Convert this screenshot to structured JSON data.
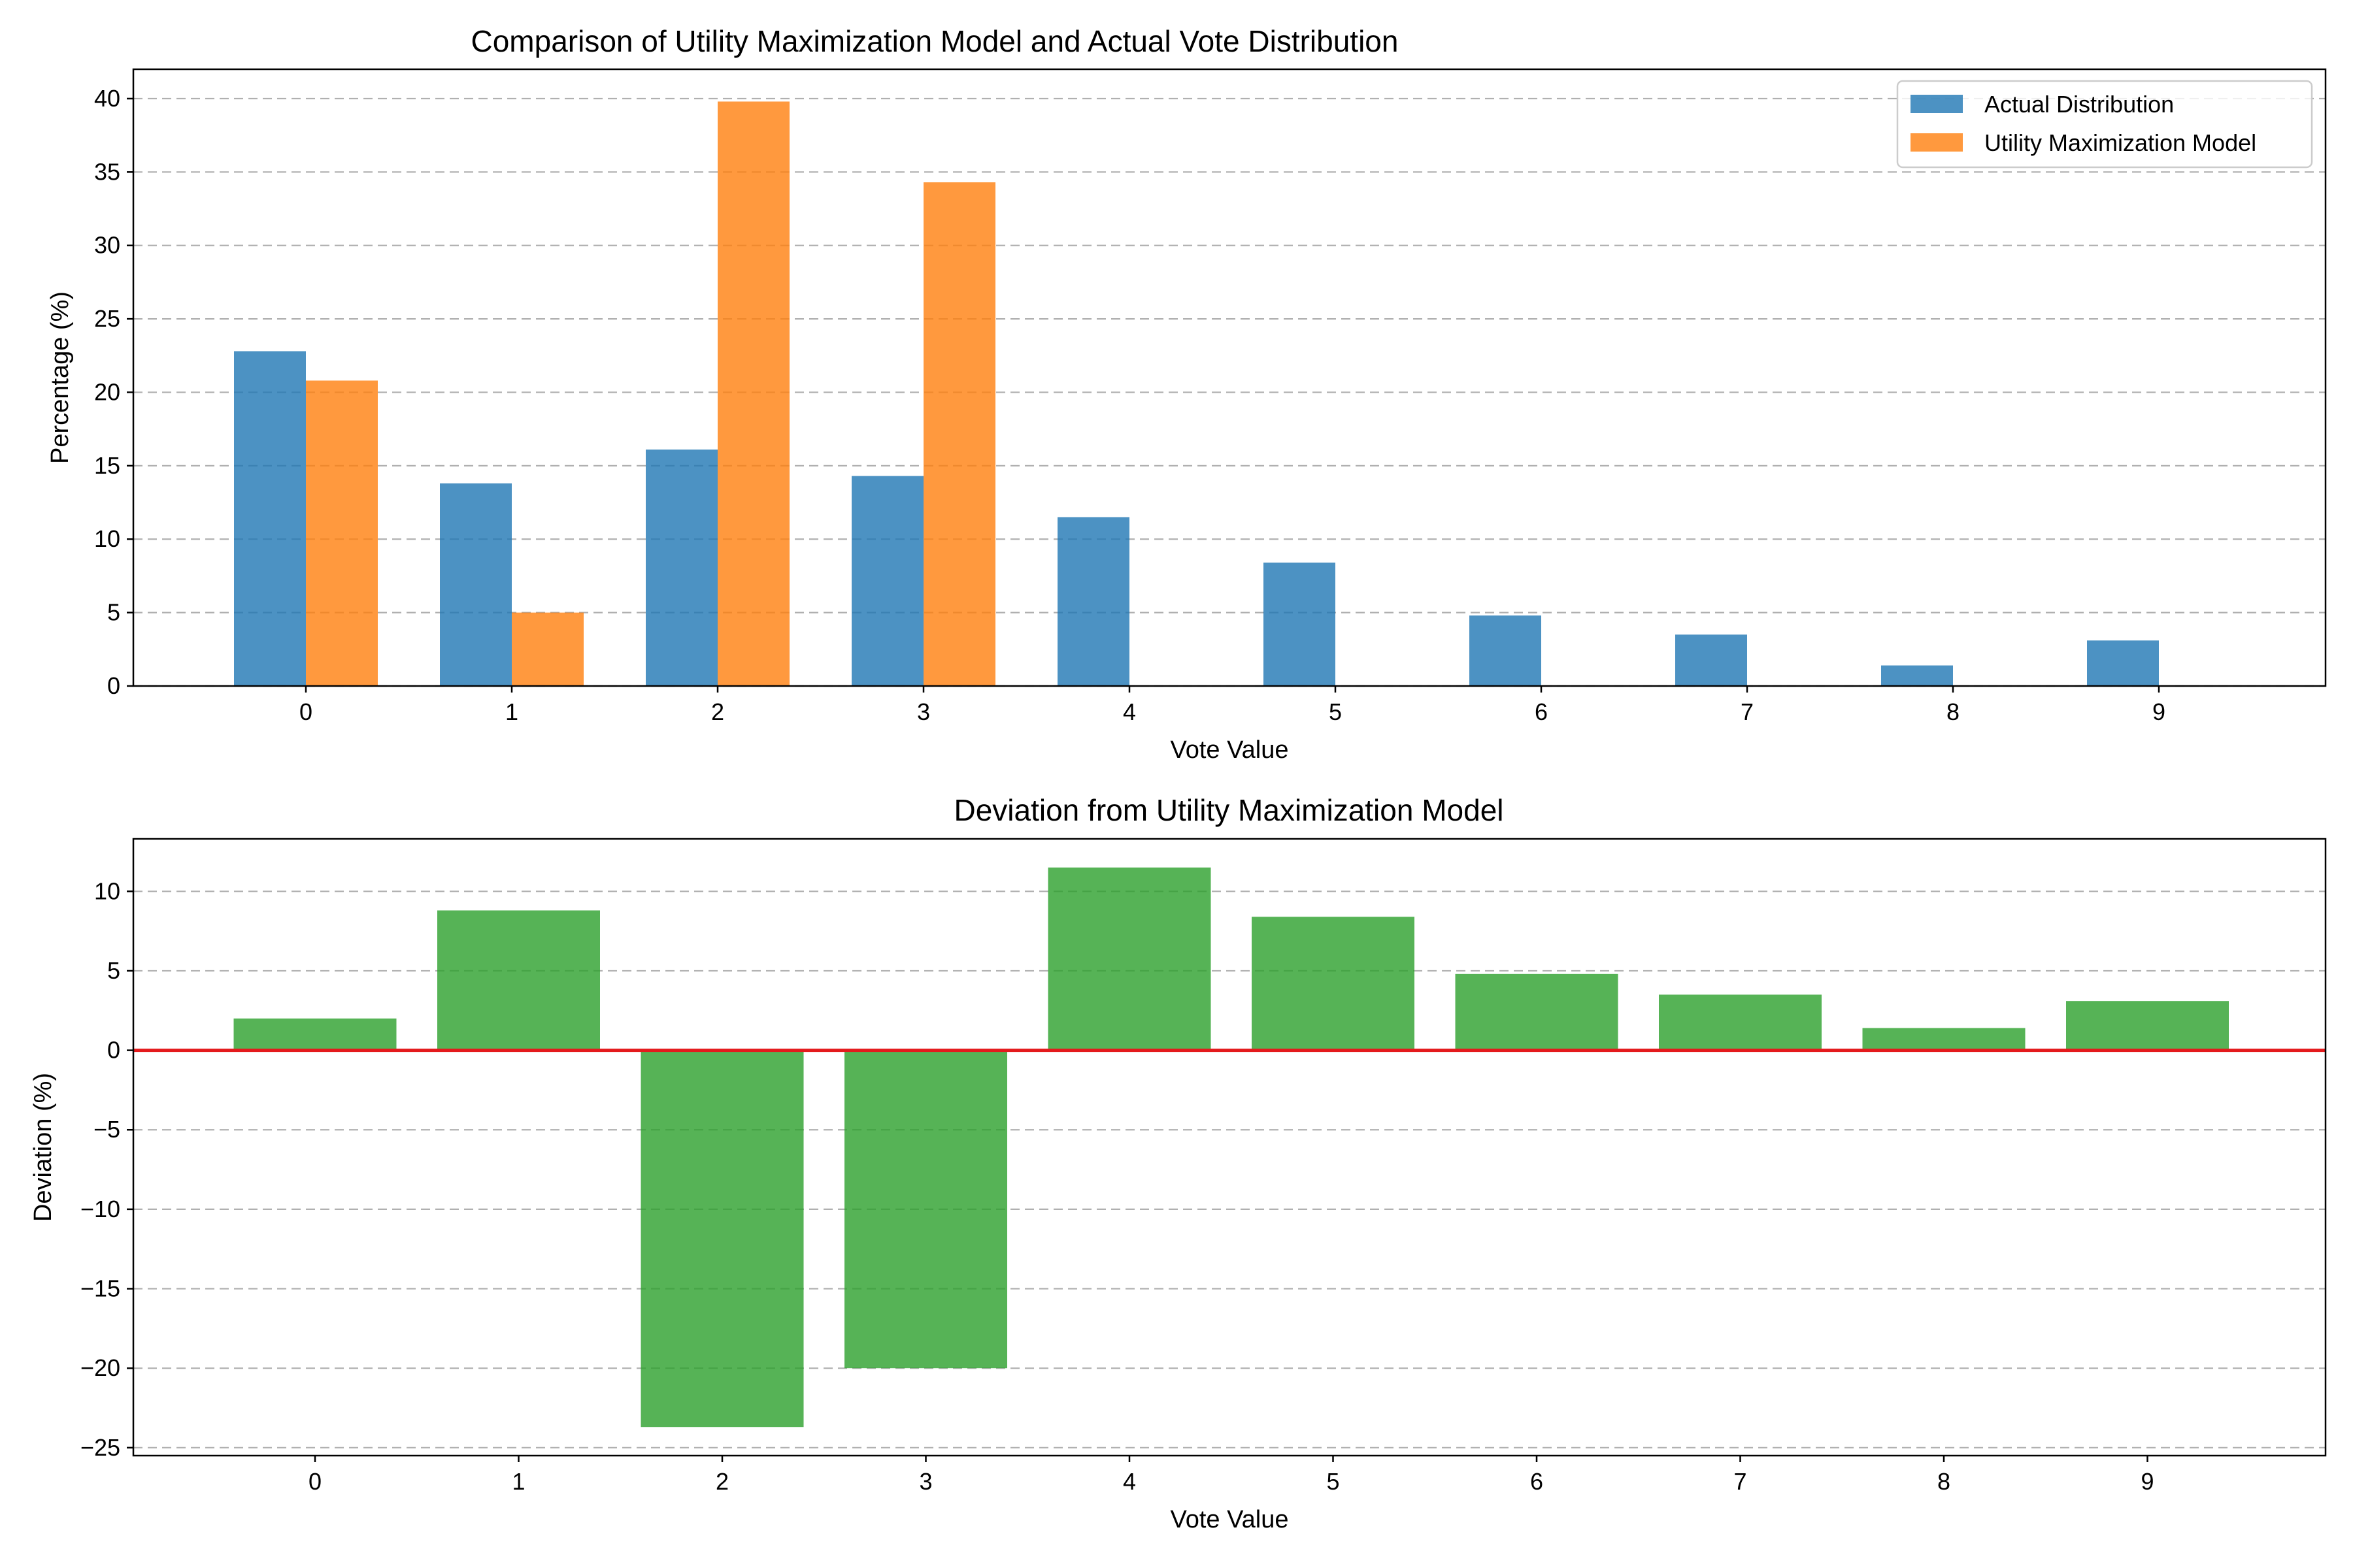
{
  "colors": {
    "actual": "#1f77b4",
    "model": "#ff7f0e",
    "deviation": "#2ca02c",
    "zero_line": "#e41a1c"
  },
  "chart_data": [
    {
      "type": "bar",
      "title": "Comparison of Utility Maximization Model and Actual Vote Distribution",
      "xlabel": "Vote Value",
      "ylabel": "Percentage (%)",
      "categories": [
        "0",
        "1",
        "2",
        "3",
        "4",
        "5",
        "6",
        "7",
        "8",
        "9"
      ],
      "series": [
        {
          "name": "Actual Distribution",
          "values": [
            22.8,
            13.8,
            16.1,
            14.3,
            11.5,
            8.4,
            4.8,
            3.5,
            1.4,
            3.1
          ]
        },
        {
          "name": "Utility Maximization Model",
          "values": [
            20.8,
            5.0,
            39.8,
            34.3,
            0,
            0,
            0,
            0,
            0,
            0
          ]
        }
      ],
      "ylim": [
        0,
        42
      ],
      "yticks": [
        0,
        5,
        10,
        15,
        20,
        25,
        30,
        35,
        40
      ],
      "grid": "y-dashed",
      "legend_position": "top-right"
    },
    {
      "type": "bar",
      "title": "Deviation from Utility Maximization Model",
      "xlabel": "Vote Value",
      "ylabel": "Deviation (%)",
      "categories": [
        "0",
        "1",
        "2",
        "3",
        "4",
        "5",
        "6",
        "7",
        "8",
        "9"
      ],
      "values": [
        2.0,
        8.8,
        -23.7,
        -20.0,
        11.5,
        8.4,
        4.8,
        3.5,
        1.4,
        3.1
      ],
      "ylim": [
        -25.5,
        13.3
      ],
      "yticks": [
        -25,
        -20,
        -15,
        -10,
        -5,
        0,
        5,
        10
      ],
      "ytick_labels": [
        "−25",
        "−20",
        "−15",
        "−10",
        "−5",
        "0",
        "5",
        "10"
      ],
      "grid": "y-dashed",
      "zero_line": true
    }
  ]
}
